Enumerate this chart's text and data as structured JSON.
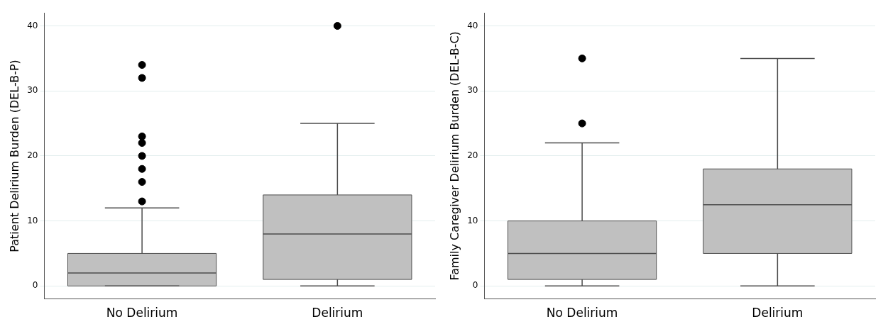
{
  "chart_data": [
    {
      "type": "box",
      "ylabel": "Patient Delirium Burden (DEL-B-P)",
      "categories": [
        "No Delirium",
        "Delirium"
      ],
      "color": "#c0c0c0",
      "ylim": [
        -2,
        42
      ],
      "yticks": [
        0,
        10,
        20,
        30,
        40
      ],
      "grid": "y",
      "boxes": [
        {
          "low": 0,
          "q1": 0,
          "median": 2,
          "q3": 5,
          "high": 12,
          "outliers": [
            13,
            16,
            18,
            20,
            22,
            23,
            32,
            34
          ]
        },
        {
          "low": 0,
          "q1": 1,
          "median": 8,
          "q3": 14,
          "high": 25,
          "outliers": [
            40
          ]
        }
      ]
    },
    {
      "type": "box",
      "ylabel": "Family Caregiver Delirium Burden (DEL-B-C)",
      "categories": [
        "No Delirium",
        "Delirium"
      ],
      "color": "#c0c0c0",
      "ylim": [
        -2,
        42
      ],
      "yticks": [
        0,
        10,
        20,
        30,
        40
      ],
      "grid": "y",
      "boxes": [
        {
          "low": 0,
          "q1": 1,
          "median": 5,
          "q3": 10,
          "high": 22,
          "outliers": [
            25,
            35
          ]
        },
        {
          "low": 0,
          "q1": 5,
          "median": 12.5,
          "q3": 18,
          "high": 35
        }
      ]
    }
  ]
}
